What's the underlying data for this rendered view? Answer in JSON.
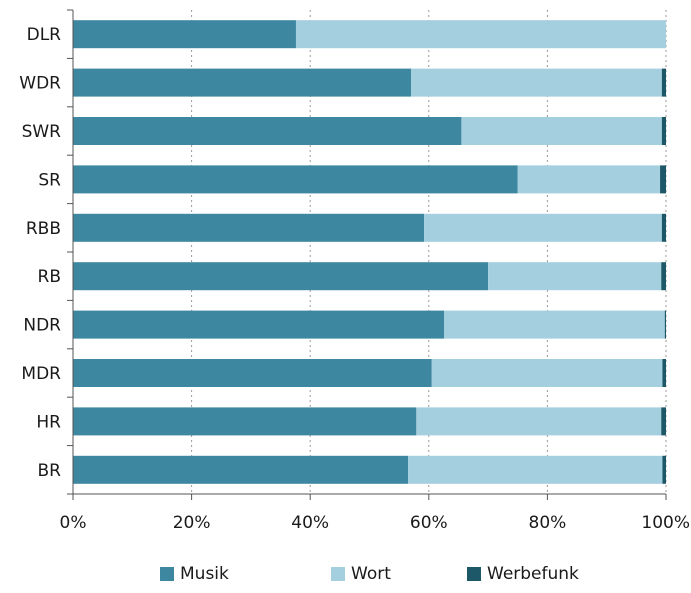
{
  "chart_data": {
    "type": "bar",
    "orientation": "horizontal",
    "stacked": true,
    "percent": true,
    "categories": [
      "DLR",
      "WDR",
      "SWR",
      "SR",
      "RBB",
      "RB",
      "NDR",
      "MDR",
      "HR",
      "BR"
    ],
    "series": [
      {
        "name": "Musik",
        "color": "#3d87a1",
        "values": [
          37.6,
          57.0,
          65.5,
          75.0,
          59.2,
          70.0,
          62.6,
          60.5,
          57.9,
          56.5
        ]
      },
      {
        "name": "Wort",
        "color": "#a4cfdf",
        "values": [
          62.4,
          42.3,
          33.8,
          24.0,
          40.1,
          29.2,
          37.2,
          38.9,
          41.3,
          42.9
        ]
      },
      {
        "name": "Werbefunk",
        "color": "#1d5868",
        "values": [
          0.0,
          0.7,
          0.7,
          1.0,
          0.7,
          0.8,
          0.2,
          0.6,
          0.8,
          0.6
        ]
      }
    ],
    "x_ticks": [
      "0%",
      "20%",
      "40%",
      "60%",
      "80%",
      "100%"
    ],
    "xlim": [
      0,
      100
    ],
    "grid": "vertical dotted",
    "legend_position": "bottom"
  }
}
